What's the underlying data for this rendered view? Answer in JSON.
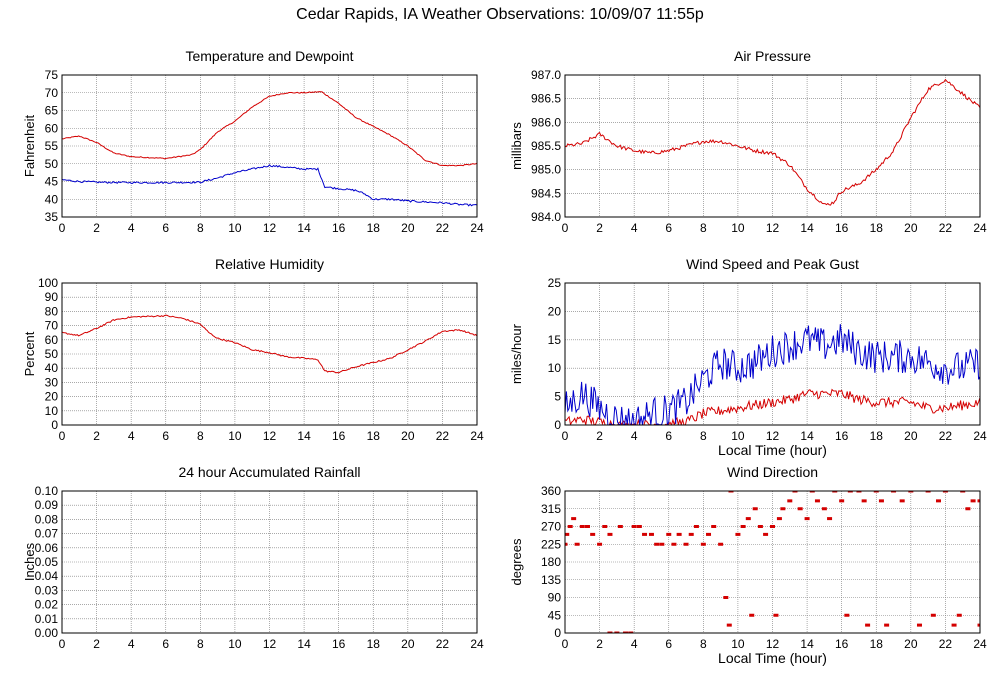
{
  "title": "Cedar Rapids, IA Weather Observations: 10/09/07 11:55p",
  "colors": {
    "red": "#d40000",
    "blue": "#0000cc",
    "grid": "#555555"
  },
  "chart_data": [
    {
      "id": "temp",
      "type": "line",
      "title": "Temperature and Dewpoint",
      "ylabel": "Fahrenheit",
      "xlabel": "",
      "xlim": [
        0,
        24
      ],
      "ylim": [
        35,
        75
      ],
      "xticks": [
        0,
        2,
        4,
        6,
        8,
        10,
        12,
        14,
        16,
        18,
        20,
        22,
        24
      ],
      "yticks": [
        35,
        40,
        45,
        50,
        55,
        60,
        65,
        70,
        75
      ],
      "grid": true,
      "series": [
        {
          "color": "#d40000",
          "noise": 0.15,
          "values": [
            [
              0,
              57
            ],
            [
              1,
              57.8
            ],
            [
              2,
              56
            ],
            [
              3,
              53
            ],
            [
              4,
              52
            ],
            [
              6,
              51.5
            ],
            [
              7.5,
              52.5
            ],
            [
              8,
              54
            ],
            [
              9,
              59
            ],
            [
              10,
              62
            ],
            [
              11,
              66
            ],
            [
              12,
              69
            ],
            [
              13,
              70
            ],
            [
              14,
              70
            ],
            [
              15,
              70.3
            ],
            [
              16,
              67
            ],
            [
              17,
              63
            ],
            [
              18,
              60.5
            ],
            [
              19,
              58
            ],
            [
              20,
              55
            ],
            [
              21,
              51
            ],
            [
              22,
              49.5
            ],
            [
              23,
              49.5
            ],
            [
              24,
              50
            ]
          ]
        },
        {
          "color": "#0000cc",
          "noise": 0.25,
          "values": [
            [
              0,
              45.5
            ],
            [
              1,
              45
            ],
            [
              2,
              44.8
            ],
            [
              4,
              44.7
            ],
            [
              6,
              44.7
            ],
            [
              8,
              44.8
            ],
            [
              9,
              46
            ],
            [
              10,
              47.5
            ],
            [
              11,
              48.5
            ],
            [
              12,
              49.5
            ],
            [
              13,
              49
            ],
            [
              14,
              48.5
            ],
            [
              14.8,
              48.5
            ],
            [
              15.2,
              43.5
            ],
            [
              16,
              43
            ],
            [
              17,
              42.5
            ],
            [
              17.5,
              41.5
            ],
            [
              18,
              40
            ],
            [
              19,
              40
            ],
            [
              20,
              39.5
            ],
            [
              22,
              39
            ],
            [
              23,
              38.5
            ],
            [
              24,
              38.3
            ]
          ]
        }
      ]
    },
    {
      "id": "pressure",
      "type": "line",
      "title": "Air Pressure",
      "ylabel": "millibars",
      "xlabel": "",
      "xlim": [
        0,
        24
      ],
      "ylim": [
        984.0,
        987.0
      ],
      "xticks": [
        0,
        2,
        4,
        6,
        8,
        10,
        12,
        14,
        16,
        18,
        20,
        22,
        24
      ],
      "yticks": [
        "984.0",
        "984.5",
        "985.0",
        "985.5",
        "986.0",
        "986.5",
        "987.0"
      ],
      "grid": true,
      "series": [
        {
          "color": "#d40000",
          "noise": 0.04,
          "values": [
            [
              0,
              985.5
            ],
            [
              1,
              985.55
            ],
            [
              2,
              985.75
            ],
            [
              3,
              985.5
            ],
            [
              4,
              985.4
            ],
            [
              5,
              985.35
            ],
            [
              6,
              985.4
            ],
            [
              7,
              985.5
            ],
            [
              8,
              985.6
            ],
            [
              9,
              985.6
            ],
            [
              10,
              985.5
            ],
            [
              11,
              985.4
            ],
            [
              12,
              985.35
            ],
            [
              13,
              985.1
            ],
            [
              14,
              984.6
            ],
            [
              15,
              984.25
            ],
            [
              15.5,
              984.3
            ],
            [
              16,
              984.55
            ],
            [
              17,
              984.7
            ],
            [
              18,
              985.0
            ],
            [
              19,
              985.4
            ],
            [
              20,
              986.1
            ],
            [
              21,
              986.7
            ],
            [
              22,
              986.9
            ],
            [
              23,
              986.6
            ],
            [
              24,
              986.3
            ]
          ]
        }
      ]
    },
    {
      "id": "humidity",
      "type": "line",
      "title": "Relative Humidity",
      "ylabel": "Percent",
      "xlabel": "",
      "xlim": [
        0,
        24
      ],
      "ylim": [
        0,
        100
      ],
      "xticks": [
        0,
        2,
        4,
        6,
        8,
        10,
        12,
        14,
        16,
        18,
        20,
        22,
        24
      ],
      "yticks": [
        0,
        10,
        20,
        30,
        40,
        50,
        60,
        70,
        80,
        90,
        100
      ],
      "grid": true,
      "series": [
        {
          "color": "#d40000",
          "noise": 0.5,
          "values": [
            [
              0,
              65
            ],
            [
              1,
              63
            ],
            [
              2,
              68
            ],
            [
              3,
              74
            ],
            [
              4,
              76
            ],
            [
              6,
              77
            ],
            [
              7,
              75
            ],
            [
              8,
              71
            ],
            [
              8.5,
              65
            ],
            [
              9,
              61
            ],
            [
              10,
              58
            ],
            [
              11,
              53
            ],
            [
              12,
              51
            ],
            [
              13,
              48
            ],
            [
              14,
              47
            ],
            [
              14.8,
              46
            ],
            [
              15.2,
              38
            ],
            [
              16,
              37
            ],
            [
              17,
              41
            ],
            [
              18,
              44
            ],
            [
              19,
              47
            ],
            [
              20,
              53
            ],
            [
              21,
              59
            ],
            [
              22,
              66
            ],
            [
              23,
              67
            ],
            [
              24,
              63
            ]
          ]
        }
      ]
    },
    {
      "id": "wind",
      "type": "line",
      "title": "Wind Speed and Peak Gust",
      "ylabel": "miles/hour",
      "xlabel": "Local Time (hour)",
      "xlim": [
        0,
        24
      ],
      "ylim": [
        0,
        25
      ],
      "xticks": [
        0,
        2,
        4,
        6,
        8,
        10,
        12,
        14,
        16,
        18,
        20,
        22,
        24
      ],
      "yticks": [
        0,
        5,
        10,
        15,
        20,
        25
      ],
      "grid": true,
      "series": [
        {
          "color": "#d40000",
          "noise": 0.9,
          "values": [
            [
              0,
              0.5
            ],
            [
              1,
              1
            ],
            [
              2,
              0.5
            ],
            [
              3,
              0
            ],
            [
              4,
              0
            ],
            [
              5,
              0
            ],
            [
              6,
              0.2
            ],
            [
              7,
              0.5
            ],
            [
              8,
              2
            ],
            [
              9,
              2.5
            ],
            [
              10,
              3
            ],
            [
              11,
              3.5
            ],
            [
              12,
              4
            ],
            [
              13,
              4.5
            ],
            [
              14,
              5.5
            ],
            [
              15,
              5.5
            ],
            [
              16,
              5.5
            ],
            [
              17,
              4.5
            ],
            [
              18,
              4
            ],
            [
              19,
              4
            ],
            [
              20,
              4
            ],
            [
              21,
              3
            ],
            [
              22,
              3
            ],
            [
              23,
              3.5
            ],
            [
              24,
              4
            ]
          ]
        },
        {
          "color": "#0000cc",
          "noise": 3.0,
          "values": [
            [
              0,
              3
            ],
            [
              1,
              5.5
            ],
            [
              2,
              3
            ],
            [
              3,
              1
            ],
            [
              4,
              0.5
            ],
            [
              5,
              2
            ],
            [
              6,
              2.5
            ],
            [
              7,
              4
            ],
            [
              8,
              8
            ],
            [
              9,
              11
            ],
            [
              10,
              10
            ],
            [
              11,
              11
            ],
            [
              12,
              13
            ],
            [
              13,
              14
            ],
            [
              14,
              15
            ],
            [
              15,
              14
            ],
            [
              16,
              15
            ],
            [
              17,
              13
            ],
            [
              18,
              12
            ],
            [
              19,
              12
            ],
            [
              20,
              12
            ],
            [
              21,
              11
            ],
            [
              22,
              10
            ],
            [
              23,
              10
            ],
            [
              24,
              11
            ]
          ]
        }
      ]
    },
    {
      "id": "rainfall",
      "type": "line",
      "title": "24 hour Accumulated Rainfall",
      "ylabel": "Inches",
      "xlabel": "",
      "xlim": [
        0,
        24
      ],
      "ylim": [
        0,
        0.1
      ],
      "xticks": [
        0,
        2,
        4,
        6,
        8,
        10,
        12,
        14,
        16,
        18,
        20,
        22,
        24
      ],
      "yticks": [
        "0.00",
        "0.01",
        "0.02",
        "0.03",
        "0.04",
        "0.05",
        "0.06",
        "0.07",
        "0.08",
        "0.09",
        "0.10"
      ],
      "grid": true,
      "series": [
        {
          "color": "#d40000",
          "noise": 0,
          "values": [
            [
              0,
              0
            ],
            [
              24,
              0
            ]
          ]
        }
      ]
    },
    {
      "id": "direction",
      "type": "scatter",
      "title": "Wind Direction",
      "ylabel": "degrees",
      "xlabel": "Local Time (hour)",
      "xlim": [
        0,
        24
      ],
      "ylim": [
        0,
        360
      ],
      "xticks": [
        0,
        2,
        4,
        6,
        8,
        10,
        12,
        14,
        16,
        18,
        20,
        22,
        24
      ],
      "yticks": [
        0,
        45,
        90,
        135,
        180,
        225,
        270,
        315,
        360
      ],
      "grid": true,
      "series": [
        {
          "color": "#d40000",
          "values": [
            [
              0,
              225
            ],
            [
              0.1,
              250
            ],
            [
              0.3,
              270
            ],
            [
              0.5,
              290
            ],
            [
              0.7,
              225
            ],
            [
              1,
              270
            ],
            [
              1.3,
              270
            ],
            [
              1.6,
              250
            ],
            [
              2,
              225
            ],
            [
              2.3,
              270
            ],
            [
              2.6,
              250
            ],
            [
              2.6,
              0
            ],
            [
              3,
              0
            ],
            [
              3.2,
              270
            ],
            [
              3.5,
              0
            ],
            [
              3.8,
              0
            ],
            [
              4,
              270
            ],
            [
              4.3,
              270
            ],
            [
              4.6,
              250
            ],
            [
              5,
              250
            ],
            [
              5.3,
              225
            ],
            [
              5.6,
              225
            ],
            [
              6,
              250
            ],
            [
              6.3,
              225
            ],
            [
              6.6,
              250
            ],
            [
              7,
              225
            ],
            [
              7.3,
              250
            ],
            [
              7.6,
              270
            ],
            [
              8,
              225
            ],
            [
              8.3,
              250
            ],
            [
              8.6,
              270
            ],
            [
              9,
              225
            ],
            [
              9.3,
              90
            ],
            [
              9.5,
              20
            ],
            [
              9.6,
              360
            ],
            [
              10,
              250
            ],
            [
              10.3,
              270
            ],
            [
              10.6,
              290
            ],
            [
              10.8,
              45
            ],
            [
              11,
              315
            ],
            [
              11.3,
              270
            ],
            [
              11.6,
              250
            ],
            [
              12,
              270
            ],
            [
              12.2,
              45
            ],
            [
              12.4,
              290
            ],
            [
              12.6,
              315
            ],
            [
              13,
              335
            ],
            [
              13.3,
              360
            ],
            [
              13.6,
              315
            ],
            [
              14,
              290
            ],
            [
              14.3,
              360
            ],
            [
              14.6,
              335
            ],
            [
              15,
              315
            ],
            [
              15.3,
              290
            ],
            [
              15.6,
              360
            ],
            [
              16,
              335
            ],
            [
              16.3,
              45
            ],
            [
              16.5,
              360
            ],
            [
              17,
              360
            ],
            [
              17.3,
              335
            ],
            [
              17.5,
              20
            ],
            [
              18,
              360
            ],
            [
              18.3,
              335
            ],
            [
              18.6,
              20
            ],
            [
              19,
              360
            ],
            [
              19.5,
              335
            ],
            [
              20,
              360
            ],
            [
              20.5,
              20
            ],
            [
              21,
              360
            ],
            [
              21.3,
              45
            ],
            [
              21.6,
              335
            ],
            [
              22,
              360
            ],
            [
              22.5,
              20
            ],
            [
              22.8,
              45
            ],
            [
              23,
              360
            ],
            [
              23.3,
              315
            ],
            [
              23.6,
              335
            ],
            [
              24,
              335
            ],
            [
              24,
              20
            ]
          ]
        }
      ]
    }
  ]
}
